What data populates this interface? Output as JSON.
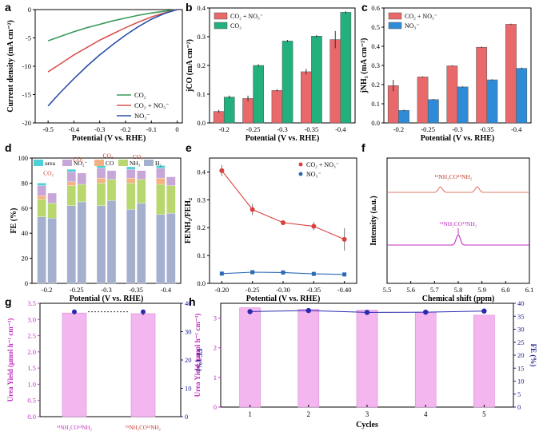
{
  "chart_data": [
    {
      "panel": "a",
      "type": "line",
      "xlabel": "Potential (V vs. RHE)",
      "ylabel": "Current density (mA cm⁻²)",
      "xlim": [
        -0.55,
        0.02
      ],
      "ylim": [
        -20,
        0
      ],
      "xticks": [
        "-0.5",
        "-0.4",
        "-0.3",
        "-0.2",
        "-0.1",
        "0"
      ],
      "yticks": [
        "0",
        "-5",
        "-10",
        "-15",
        "-20"
      ],
      "series": [
        {
          "name": "CO₂",
          "color": "#3a9a5b",
          "x": [
            -0.5,
            -0.45,
            -0.4,
            -0.35,
            -0.3,
            -0.25,
            -0.2,
            -0.15,
            -0.1,
            -0.05,
            0
          ],
          "y": [
            -5.5,
            -4.7,
            -3.9,
            -3.2,
            -2.6,
            -2.0,
            -1.5,
            -1.0,
            -0.6,
            -0.3,
            0
          ]
        },
        {
          "name": "CO₂ + NO₃⁻",
          "color": "#d9534f",
          "x": [
            -0.5,
            -0.45,
            -0.4,
            -0.35,
            -0.3,
            -0.25,
            -0.2,
            -0.15,
            -0.1,
            -0.05,
            0
          ],
          "y": [
            -11,
            -9.5,
            -8.0,
            -6.7,
            -5.4,
            -4.3,
            -3.2,
            -2.2,
            -1.3,
            -0.6,
            0
          ]
        },
        {
          "name": "NO₃⁻",
          "color": "#2b4fa8",
          "x": [
            -0.5,
            -0.45,
            -0.4,
            -0.35,
            -0.3,
            -0.25,
            -0.2,
            -0.15,
            -0.1,
            -0.05,
            0
          ],
          "y": [
            -17,
            -14.5,
            -12.2,
            -10.0,
            -8.0,
            -6.2,
            -4.5,
            -3.0,
            -1.7,
            -0.7,
            0
          ]
        }
      ]
    },
    {
      "panel": "b",
      "type": "bar",
      "xlabel": "Potential (V vs. RHE)",
      "ylabel": "jCO (mA cm⁻²)",
      "ylim": [
        0,
        0.4
      ],
      "yticks": [
        "0.0",
        "0.1",
        "0.2",
        "0.3",
        "0.4"
      ],
      "categories": [
        "-0.2",
        "-0.25",
        "-0.3",
        "-0.35",
        "-0.4"
      ],
      "series": [
        {
          "name": "CO₂ + NO₃⁻",
          "color": "#e9686a",
          "values": [
            0.04,
            0.085,
            0.113,
            0.178,
            0.29
          ],
          "err": [
            0.005,
            0.01,
            0.004,
            0.01,
            0.03
          ]
        },
        {
          "name": "CO₂",
          "color": "#22b07d",
          "values": [
            0.09,
            0.2,
            0.285,
            0.302,
            0.385
          ],
          "err": [
            0.005,
            0.004,
            0.004,
            0.004,
            0.004
          ]
        }
      ]
    },
    {
      "panel": "c",
      "type": "bar",
      "xlabel": "Potential (V vs. RHE)",
      "ylabel": "jNH₃ (mA cm⁻²)",
      "ylim": [
        0,
        0.6
      ],
      "yticks": [
        "0.0",
        "0.1",
        "0.2",
        "0.3",
        "0.4",
        "0.5",
        "0.6"
      ],
      "categories": [
        "-0.2",
        "-0.25",
        "-0.3",
        "-0.35",
        "-0.4"
      ],
      "series": [
        {
          "name": "CO₂ + NO₃⁻",
          "color": "#e9686a",
          "values": [
            0.195,
            0.24,
            0.298,
            0.395,
            0.515
          ],
          "err": [
            0.03,
            0.003,
            0.003,
            0.003,
            0.003
          ]
        },
        {
          "name": "NO₃⁻",
          "color": "#2d8bd8",
          "values": [
            0.065,
            0.122,
            0.188,
            0.225,
            0.285
          ],
          "err": [
            0.004,
            0.003,
            0.003,
            0.003,
            0.004
          ]
        }
      ]
    },
    {
      "panel": "d",
      "type": "bar",
      "xlabel": "Potential (V vs. RHE)",
      "ylabel": "FE (%)",
      "ylim": [
        0,
        100
      ],
      "yticks": [
        "0",
        "20",
        "40",
        "60",
        "80",
        "100"
      ],
      "categories": [
        "-0.2",
        "-0.25",
        "-0.3",
        "-0.35",
        "-0.4"
      ],
      "legend": [
        "urea",
        "NO₂⁻",
        "CO",
        "NH₃",
        "H₂"
      ],
      "stack_colors": [
        "#4ed0d6",
        "#c7a6d8",
        "#f4b183",
        "#b9d76f",
        "#a5b0cf"
      ],
      "groups": [
        {
          "label": "-0.2",
          "with_co2": [
            2,
            8,
            3,
            14,
            53
          ],
          "without_co2": [
            0,
            8,
            0,
            12,
            52
          ]
        },
        {
          "label": "-0.25",
          "with_co2": [
            2,
            8,
            3,
            16,
            62
          ],
          "without_co2": [
            0,
            9,
            0,
            14,
            65
          ]
        },
        {
          "label": "-0.3",
          "with_co2": [
            2,
            8,
            4,
            18,
            62
          ],
          "without_co2": [
            0,
            7,
            0,
            17,
            66
          ]
        },
        {
          "label": "-0.35",
          "with_co2": [
            2,
            7,
            4,
            21,
            59
          ],
          "without_co2": [
            0,
            7,
            0,
            19,
            64
          ]
        },
        {
          "label": "-0.4",
          "with_co2": [
            2,
            8,
            5,
            24,
            55
          ],
          "without_co2": [
            0,
            7,
            0,
            22,
            56
          ]
        }
      ],
      "annotations": [
        "CO₂",
        "CO₂",
        "CO₂",
        "CO₂"
      ]
    },
    {
      "panel": "e",
      "type": "scatter",
      "xlabel": "Potential (V vs. RHE)",
      "ylabel": "FENH₃/FEH₂",
      "xlim": [
        -0.42,
        -0.18
      ],
      "ylim": [
        0,
        0.45
      ],
      "xticks": [
        "-0.20",
        "-0.25",
        "-0.30",
        "-0.35",
        "-0.40"
      ],
      "yticks": [
        "0.0",
        "0.1",
        "0.2",
        "0.3",
        "0.4"
      ],
      "series": [
        {
          "name": "CO₂ + NO₃⁻",
          "color": "#d9413d",
          "x": [
            -0.2,
            -0.25,
            -0.3,
            -0.35,
            -0.4
          ],
          "y": [
            0.405,
            0.265,
            0.218,
            0.205,
            0.158
          ],
          "err": [
            0.02,
            0.02,
            0.008,
            0.015,
            0.04
          ]
        },
        {
          "name": "NO₃⁻",
          "color": "#2a6bb5",
          "x": [
            -0.2,
            -0.25,
            -0.3,
            -0.35,
            -0.4
          ],
          "y": [
            0.035,
            0.04,
            0.039,
            0.034,
            0.032
          ],
          "err": [
            0.003,
            0.004,
            0.008,
            0.003,
            0.003
          ]
        }
      ]
    },
    {
      "panel": "f",
      "type": "line",
      "xlabel": "Chemical shift (ppm)",
      "ylabel": "Intensity (a.u.)",
      "xlim": [
        5.5,
        6.1
      ],
      "xticks": [
        "5.5",
        "5.6",
        "5.7",
        "5.8",
        "5.9",
        "6.0",
        "6.1"
      ],
      "series": [
        {
          "name": "¹⁵NH₂CO¹⁵NH₂",
          "color": "#e07b6a",
          "peaks_ppm": [
            5.725,
            5.88
          ]
        },
        {
          "name": "¹⁴NH₂CO¹⁴NH₂",
          "color": "#c02fc0",
          "peaks_ppm": [
            5.8
          ]
        }
      ]
    },
    {
      "panel": "g",
      "type": "bar",
      "ylabel": "Urea Yield (μmol h⁻¹ cm⁻²)",
      "y2label": "FE (%)",
      "ylim": [
        0,
        3.5
      ],
      "y2lim": [
        0,
        40
      ],
      "yticks": [
        "0.0",
        "0.5",
        "1.0",
        "1.5",
        "2.0",
        "2.5",
        "3.0",
        "3.5"
      ],
      "y2ticks": [
        "0",
        "10",
        "20",
        "30",
        "40"
      ],
      "categories": [
        "¹⁴NH₂CO¹⁴NH₂",
        "¹⁵NH₂CO¹⁵NH₂"
      ],
      "values": [
        3.2,
        3.18
      ],
      "fe": [
        37,
        37
      ]
    },
    {
      "panel": "h",
      "type": "bar",
      "xlabel": "Cycles",
      "ylabel": "Urea Yield (μmol h⁻¹ cm⁻²)",
      "y2label": "FE (%)",
      "ylim": [
        0,
        3.5
      ],
      "y2lim": [
        0,
        40
      ],
      "yticks": [
        "0",
        "1",
        "2",
        "3"
      ],
      "y2ticks": [
        "0",
        "5",
        "10",
        "15",
        "20",
        "25",
        "30",
        "35",
        "40"
      ],
      "categories": [
        "1",
        "2",
        "3",
        "4",
        "5"
      ],
      "values": [
        3.35,
        3.3,
        3.27,
        3.2,
        3.1
      ],
      "fe": [
        36.8,
        37.2,
        36.5,
        36.6,
        37.0
      ]
    }
  ],
  "panel_labels": [
    "a",
    "b",
    "c",
    "d",
    "e",
    "f",
    "g",
    "h"
  ],
  "text": {
    "legend_a": [
      "CO₂",
      "CO₂ + NO₃⁻",
      "NO₃⁻"
    ],
    "legend_b": [
      "CO₂ + NO₃⁻",
      "CO₂"
    ],
    "legend_c": [
      "CO₂ + NO₃⁻",
      "NO₃⁻"
    ],
    "legend_d": [
      "urea",
      "NO₂⁻",
      "CO",
      "NH₃",
      "H₂"
    ],
    "legend_e": [
      "CO₂ + NO₃⁻",
      "NO₃⁻"
    ],
    "f_labels": [
      "¹⁵NH₂CO¹⁵NH₂",
      "¹⁴NH₂CO¹⁴NH₂"
    ]
  }
}
